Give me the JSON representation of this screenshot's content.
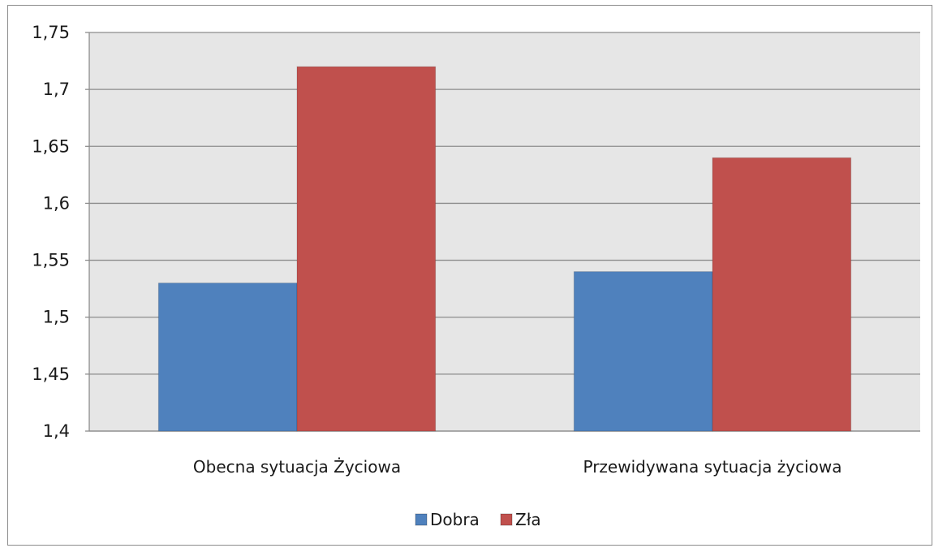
{
  "chart_data": {
    "type": "bar",
    "title": "",
    "xlabel": "",
    "ylabel": "",
    "categories": [
      "Obecna sytuacja Życiowa",
      "Przewidywana sytuacja życiowa"
    ],
    "series": [
      {
        "name": "Dobra",
        "values": [
          1.53,
          1.54
        ],
        "color": "#4f81bd"
      },
      {
        "name": "Zła",
        "values": [
          1.72,
          1.64
        ],
        "color": "#c0504d"
      }
    ],
    "ylim": [
      1.4,
      1.75
    ],
    "yticks": [
      1.4,
      1.45,
      1.5,
      1.55,
      1.6,
      1.65,
      1.7,
      1.75
    ],
    "ytick_labels": [
      "1,4",
      "1,45",
      "1,5",
      "1,55",
      "1,6",
      "1,65",
      "1,7",
      "1,75"
    ],
    "grid": true,
    "plot_background": "#e6e6e6",
    "gridline_color": "#8c8c8c",
    "legend_position": "bottom"
  }
}
